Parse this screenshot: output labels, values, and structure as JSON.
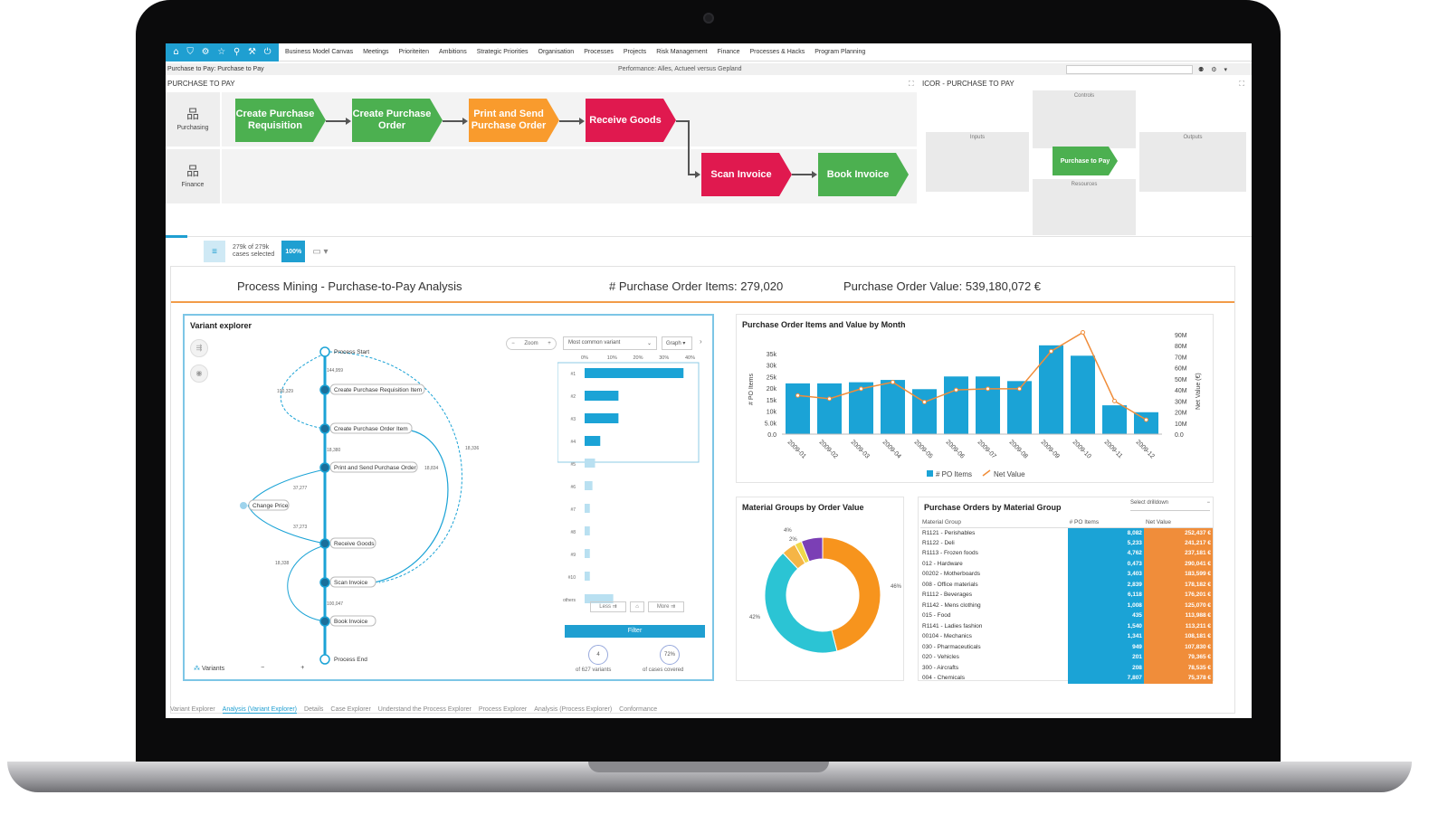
{
  "topnav": {
    "menu": [
      "Business Model Canvas",
      "Meetings",
      "Prioriteiten",
      "Ambitions",
      "Strategic Priorities",
      "Organisation",
      "Processes",
      "Projects",
      "Risk Management",
      "Finance",
      "Processes & Hacks",
      "Program Planning"
    ]
  },
  "crumb": {
    "left": "Purchase to Pay: Purchase to Pay",
    "mid": "Performance: Alles, Actueel versus Gepland"
  },
  "process": {
    "title": "PURCHASE TO PAY",
    "lanes": [
      "Purchasing",
      "Finance"
    ],
    "steps": [
      {
        "label": "Create Purchase Requisition",
        "color": "green"
      },
      {
        "label": "Create Purchase Order",
        "color": "green"
      },
      {
        "label": "Print and Send Purchase Order",
        "color": "orange"
      },
      {
        "label": "Receive Goods",
        "color": "red"
      },
      {
        "label": "Scan Invoice",
        "color": "red"
      },
      {
        "label": "Book Invoice",
        "color": "green"
      }
    ]
  },
  "icor": {
    "title": "ICOR - PURCHASE TO PAY",
    "controls": "Controls",
    "inputs": "Inputs",
    "outputs": "Outputs",
    "resources": "Resources",
    "center": "Purchase to Pay"
  },
  "filterbar": {
    "cases_line1": "279k of 279k",
    "cases_line2": "cases selected",
    "percent": "100%"
  },
  "dashboard": {
    "title": "Process Mining - Purchase-to-Pay Analysis",
    "po_items": "# Purchase Order Items: 279,020",
    "po_value": "Purchase Order Value: 539,180,072 €"
  },
  "variant_explorer": {
    "title": "Variant explorer",
    "zoom": "Zoom",
    "dropdown": "Most common variant",
    "graph": "Graph",
    "nodes": [
      "Process Start",
      "Create Purchase Requisition Item",
      "Create Purchase Order Item",
      "Print and Send Purchase Order",
      "Change Price",
      "Receive Goods",
      "Scan Invoice",
      "Book Invoice",
      "Process End"
    ],
    "edge_labels": [
      "144,959",
      "100,329",
      "18,380",
      "37,277",
      "37,273",
      "18,338",
      "18,834",
      "18,336",
      "100,047"
    ],
    "bar_axis": [
      "0%",
      "10%",
      "20%",
      "30%",
      "40%"
    ],
    "bar_values": [
      38,
      13,
      13,
      6,
      4,
      3,
      2,
      2,
      2,
      2,
      11
    ],
    "bar_labels": [
      "#1",
      "#2",
      "#3",
      "#4",
      "#5",
      "#6",
      "#7",
      "#8",
      "#9",
      "#10",
      "others"
    ],
    "less": "Less",
    "more": "More",
    "filter": "Filter",
    "variants_count": "4",
    "variants_caption": "of 627 variants",
    "covered_pct": "72%",
    "covered_caption": "of cases covered",
    "variants_label": "Variants"
  },
  "month_chart": {
    "title": "Purchase Order Items and Value by Month",
    "legend_bar": "# PO Items",
    "legend_line": "Net Value",
    "ylabel_left": "# PO Items",
    "ylabel_right": "Net Value (€)"
  },
  "donut": {
    "title": "Material Groups by Order Value",
    "label_left": "42%",
    "label_right": "46%",
    "label_top1": "4%",
    "label_top2": "2%"
  },
  "table": {
    "title": "Purchase Orders by Material Group",
    "dropdown": "Select drilldown",
    "headers": [
      "Material Group",
      "# PO Items",
      "Net Value"
    ],
    "rows": [
      [
        "R1121 - Perishables",
        "8,082",
        "252,437 €"
      ],
      [
        "R1122 - Deli",
        "5,233",
        "241,217 €"
      ],
      [
        "R1113 - Frozen foods",
        "4,762",
        "237,181 €"
      ],
      [
        "012 - Hardware",
        "0,473",
        "290,041 €"
      ],
      [
        "00202 - Motherboards",
        "3,403",
        "183,599 €"
      ],
      [
        "008 - Office materials",
        "2,839",
        "178,182 €"
      ],
      [
        "R1112 - Beverages",
        "6,118",
        "176,201 €"
      ],
      [
        "R1142 - Mens clothing",
        "1,008",
        "125,070 €"
      ],
      [
        "015 - Food",
        "435",
        "113,988 €"
      ],
      [
        "R1141 - Ladies fashion",
        "1,540",
        "113,211 €"
      ],
      [
        "00104 - Mechanics",
        "1,341",
        "108,181 €"
      ],
      [
        "030 - Pharmaceuticals",
        "949",
        "107,830 €"
      ],
      [
        "020 - Vehicles",
        "201",
        "79,365 €"
      ],
      [
        "300 - Aircrafts",
        "208",
        "78,535 €"
      ],
      [
        "004 - Chemicals",
        "7,807",
        "75,378 €"
      ]
    ]
  },
  "tabs": [
    "Variant Explorer",
    "Analysis (Variant Explorer)",
    "Details",
    "Case Explorer",
    "Understand the Process Explorer",
    "Process Explorer",
    "Analysis (Process Explorer)",
    "Conformance"
  ],
  "chart_data": [
    {
      "type": "bar",
      "title": "Purchase Order Items and Value by Month",
      "categories": [
        "2009-01",
        "2009-02",
        "2009-03",
        "2009-04",
        "2009-05",
        "2009-06",
        "2009-07",
        "2009-08",
        "2009-09",
        "2009-10",
        "2009-11",
        "2009-12"
      ],
      "series": [
        {
          "name": "# PO Items",
          "type": "bar",
          "axis": "left",
          "values": [
            22000,
            22000,
            22500,
            23500,
            19500,
            25000,
            25000,
            23000,
            38500,
            34000,
            12500,
            9500
          ]
        },
        {
          "name": "Net Value",
          "type": "line",
          "axis": "right",
          "values": [
            35000000,
            32000000,
            41000000,
            47000000,
            29000000,
            40000000,
            41000000,
            41000000,
            75000000,
            92000000,
            30000000,
            13000000
          ]
        }
      ],
      "ylabel": "# PO Items",
      "ylabel_right": "Net Value (€)",
      "ylim": [
        0,
        40000
      ],
      "ylim_right": [
        0,
        90000000
      ],
      "yticks": [
        "0.0",
        "5.0k",
        "10k",
        "15k",
        "20k",
        "25k",
        "30k",
        "35k"
      ],
      "yticks_right": [
        "0.0",
        "10M",
        "20M",
        "30M",
        "40M",
        "50M",
        "60M",
        "70M",
        "80M",
        "90M"
      ],
      "colors": {
        "bar": "#1ba3d6",
        "line": "#f08d3a"
      }
    },
    {
      "type": "pie",
      "title": "Material Groups by Order Value",
      "values": [
        46,
        42,
        4,
        2,
        6
      ],
      "colors": [
        "#f7941d",
        "#2bc4d4",
        "#f5b546",
        "#f0d94a",
        "#7b3fb5"
      ]
    }
  ]
}
